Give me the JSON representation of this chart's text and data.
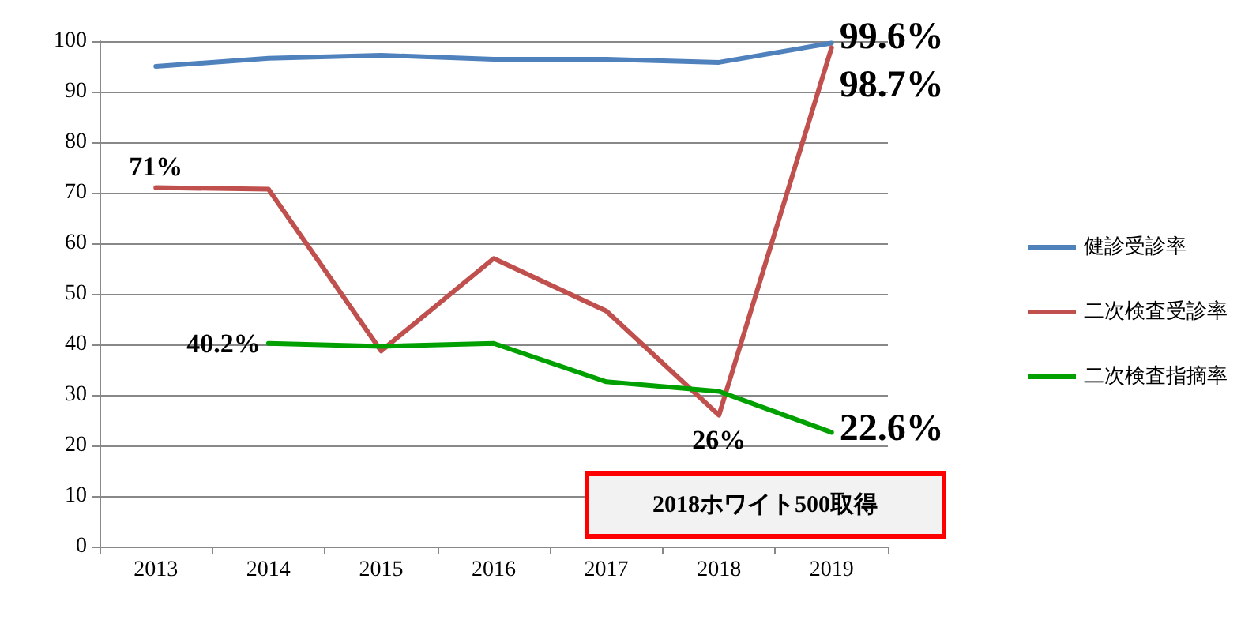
{
  "chart_data": {
    "type": "line",
    "categories": [
      "2013",
      "2014",
      "2015",
      "2016",
      "2017",
      "2018",
      "2019"
    ],
    "series": [
      {
        "name": "健診受診率",
        "color": "#4f81bd",
        "values": [
          95,
          96.6,
          97.2,
          96.4,
          96.4,
          95.8,
          99.6
        ],
        "value_labels": [
          null,
          null,
          null,
          null,
          null,
          null,
          "99.6%"
        ]
      },
      {
        "name": "二次検査受診率",
        "color": "#c0504d",
        "values": [
          71,
          70.7,
          38.7,
          57,
          46.6,
          26,
          98.7
        ],
        "value_labels": [
          "71%",
          null,
          null,
          null,
          null,
          "26%",
          "98.7%"
        ]
      },
      {
        "name": "二次検査指摘率",
        "color": "#00a000",
        "values": [
          null,
          40.2,
          39.6,
          40.2,
          32.6,
          30.7,
          22.6
        ],
        "value_labels": [
          null,
          "40.2%",
          null,
          null,
          null,
          null,
          "22.6%"
        ]
      }
    ],
    "ylim": [
      0,
      100
    ],
    "yticks": [
      0,
      10,
      20,
      30,
      40,
      50,
      60,
      70,
      80,
      90,
      100
    ],
    "grid": "y",
    "legend": "right",
    "marker": "none",
    "line_style": "solid",
    "annotations": [
      "2018ホワイト500取得"
    ]
  }
}
